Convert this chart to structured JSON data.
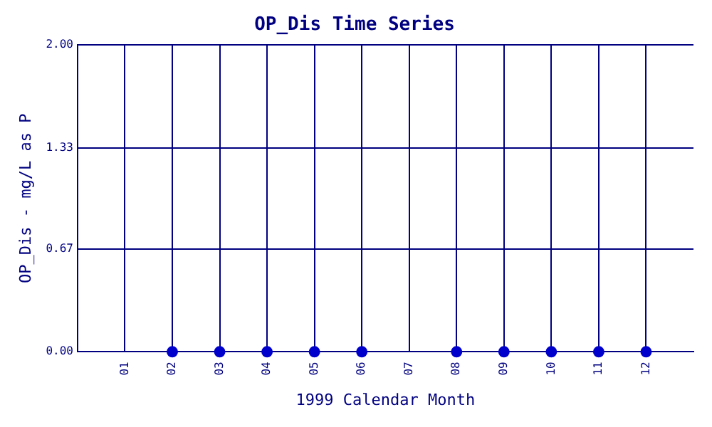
{
  "chart_data": {
    "type": "scatter",
    "title": "OP_Dis Time Series",
    "xlabel": "1999 Calendar Month",
    "ylabel": "OP_Dis - mg/L as P",
    "categories": [
      "01",
      "02",
      "03",
      "04",
      "05",
      "06",
      "07",
      "08",
      "09",
      "10",
      "11",
      "12"
    ],
    "series": [
      {
        "color": "#0000cc",
        "values": [
          null,
          0,
          0,
          0,
          0,
          0,
          null,
          0,
          0,
          0,
          0,
          0
        ]
      }
    ],
    "ylim": [
      0,
      2
    ],
    "yticks": [
      {
        "value": 0,
        "label": "0.00"
      },
      {
        "value": 0.67,
        "label": "0.67"
      },
      {
        "value": 1.33,
        "label": "1.33"
      },
      {
        "value": 2,
        "label": "2.00"
      }
    ],
    "grid": true,
    "marker": "circle"
  }
}
